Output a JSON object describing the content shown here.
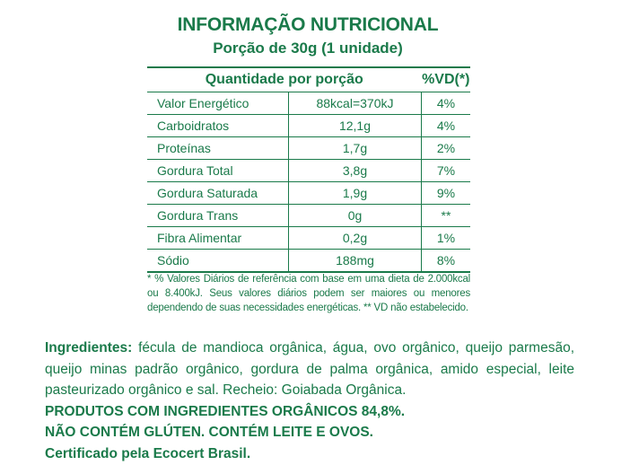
{
  "header": {
    "title": "INFORMAÇÃO NUTRICIONAL",
    "serving": "Porção de 30g (1 unidade)"
  },
  "table": {
    "col_amount": "Quantidade por porção",
    "col_dv": "%VD(*)",
    "rows": [
      {
        "name": "Valor Energético",
        "amount": "88kcal=370kJ",
        "dv": "4%"
      },
      {
        "name": "Carboidratos",
        "amount": "12,1g",
        "dv": "4%"
      },
      {
        "name": "Proteínas",
        "amount": "1,7g",
        "dv": "2%"
      },
      {
        "name": "Gordura Total",
        "amount": "3,8g",
        "dv": "7%"
      },
      {
        "name": "Gordura Saturada",
        "amount": "1,9g",
        "dv": "9%"
      },
      {
        "name": "Gordura Trans",
        "amount": "0g",
        "dv": "**"
      },
      {
        "name": "Fibra Alimentar",
        "amount": "0,2g",
        "dv": "1%"
      },
      {
        "name": "Sódio",
        "amount": "188mg",
        "dv": "8%"
      }
    ]
  },
  "footnote": "* % Valores Diários de referência com base em uma dieta de 2.000kcal ou 8.400kJ. Seus valores diários podem ser maiores ou menores dependendo de suas necessidades energéticas. ** VD não estabelecido.",
  "ingredients": {
    "label": "Ingredientes:",
    "line1": "fécula de mandioca orgânica, água, ovo orgânico, queijo parmesão,",
    "line2": "queijo minas padrão orgânico, gordura de palma orgânica, amido especial, leite",
    "line3": "pasteurizado orgânico e sal. Recheio: Goiabada Orgânica.",
    "organic": "PRODUTOS COM INGREDIENTES ORGÂNICOS 84,8%.",
    "allergens": "NÃO CONTÉM GLÚTEN. CONTÉM LEITE E OVOS.",
    "certification": "Certificado pela Ecocert Brasil."
  },
  "colors": {
    "text": "#1a7a4a",
    "background": "#ffffff"
  }
}
